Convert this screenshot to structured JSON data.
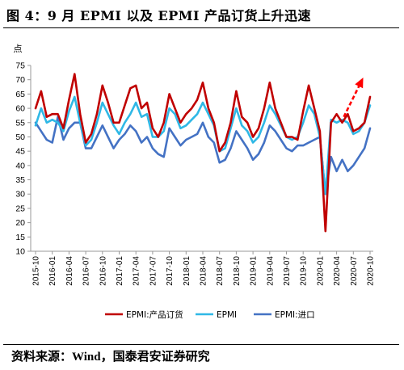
{
  "figure": {
    "title": "图 4：9 月 EPMI 以及 EPMI 产品订货上升迅速",
    "source_prefix": "资料来源：",
    "source_wind": "Wind",
    "source_suffix": "，国泰君安证券研究"
  },
  "colors": {
    "epmi_orders": "#c00000",
    "epmi": "#2fb8e6",
    "epmi_imports": "#4472c4",
    "arrow": "#ff0000"
  },
  "chart_data": {
    "type": "line",
    "title": "图 4：9 月 EPMI 以及 EPMI 产品订货上升迅速",
    "ylabel": "点",
    "xlabel": "",
    "ylim": [
      10,
      75
    ],
    "yticks": [
      10,
      15,
      20,
      25,
      30,
      35,
      40,
      45,
      50,
      55,
      60,
      65,
      70,
      75
    ],
    "grid": false,
    "legend_position": "bottom",
    "xtick_labels": [
      "2015-10",
      "2016-01",
      "2016-04",
      "2016-07",
      "2016-10",
      "2017-01",
      "2017-04",
      "2017-07",
      "2017-10",
      "2018-01",
      "2018-04",
      "2018-07",
      "2018-10",
      "2019-01",
      "2019-04",
      "2019-07",
      "2019-10",
      "2020-01",
      "2020-04",
      "2020-07",
      "2020-10"
    ],
    "x": [
      "2015-10",
      "2015-11",
      "2015-12",
      "2016-01",
      "2016-02",
      "2016-03",
      "2016-04",
      "2016-05",
      "2016-06",
      "2016-07",
      "2016-08",
      "2016-09",
      "2016-10",
      "2016-11",
      "2016-12",
      "2017-01",
      "2017-02",
      "2017-03",
      "2017-04",
      "2017-05",
      "2017-06",
      "2017-07",
      "2017-08",
      "2017-09",
      "2017-10",
      "2017-11",
      "2017-12",
      "2018-01",
      "2018-02",
      "2018-03",
      "2018-04",
      "2018-05",
      "2018-06",
      "2018-07",
      "2018-08",
      "2018-09",
      "2018-10",
      "2018-11",
      "2018-12",
      "2019-01",
      "2019-02",
      "2019-03",
      "2019-04",
      "2019-05",
      "2019-06",
      "2019-07",
      "2019-08",
      "2019-09",
      "2019-10",
      "2019-11",
      "2019-12",
      "2020-01",
      "2020-02",
      "2020-03",
      "2020-04",
      "2020-05",
      "2020-06",
      "2020-07",
      "2020-08",
      "2020-09",
      "2020-10"
    ],
    "series": [
      {
        "name": "EPMI:产品订货",
        "color_key": "epmi_orders",
        "values": [
          60,
          66,
          57,
          58,
          58,
          53,
          63,
          72,
          58,
          48,
          51,
          58,
          68,
          62,
          55,
          55,
          61,
          67,
          68,
          60,
          62,
          53,
          50,
          55,
          65,
          60,
          55,
          58,
          60,
          63,
          69,
          60,
          55,
          45,
          48,
          55,
          66,
          57,
          55,
          50,
          53,
          60,
          69,
          60,
          55,
          50,
          50,
          49,
          59,
          68,
          60,
          52,
          17,
          55,
          58,
          55,
          58,
          52,
          53,
          55,
          64
        ]
      },
      {
        "name": "EPMI",
        "color_key": "epmi",
        "values": [
          54,
          60,
          55,
          56,
          55,
          52,
          59,
          64,
          55,
          47,
          49,
          55,
          62,
          58,
          54,
          51,
          55,
          58,
          62,
          57,
          58,
          50,
          50,
          52,
          60,
          58,
          53,
          54,
          56,
          58,
          62,
          58,
          54,
          45,
          46,
          53,
          60,
          54,
          52,
          48,
          50,
          55,
          61,
          58,
          54,
          50,
          49,
          50,
          55,
          61,
          58,
          50,
          30,
          56,
          55,
          56,
          55,
          51,
          52,
          55,
          61
        ]
      },
      {
        "name": "EPMI:进口",
        "color_key": "epmi_imports",
        "values": [
          55,
          52,
          49,
          48,
          57,
          49,
          53,
          55,
          55,
          46,
          46,
          50,
          54,
          50,
          46,
          49,
          51,
          54,
          52,
          48,
          50,
          46,
          44,
          43,
          53,
          50,
          47,
          49,
          50,
          51,
          55,
          50,
          48,
          41,
          42,
          46,
          52,
          49,
          46,
          42,
          44,
          48,
          54,
          52,
          49,
          46,
          45,
          47,
          47,
          48,
          49,
          50,
          30,
          43,
          38,
          42,
          38,
          40,
          43,
          46,
          53
        ]
      }
    ]
  }
}
